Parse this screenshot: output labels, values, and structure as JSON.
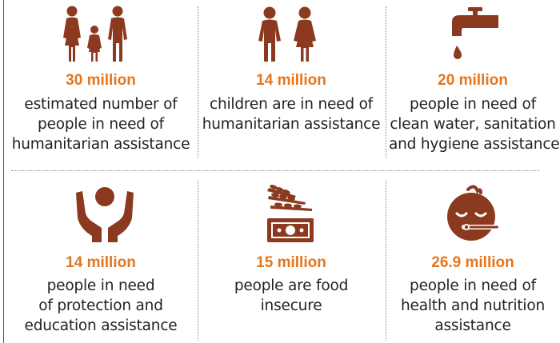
{
  "stats": [
    {
      "icon": "family-icon",
      "figure": "30 million",
      "lines": [
        "estimated number of",
        "people in need of",
        "humanitarian assistance"
      ]
    },
    {
      "icon": "children-icon",
      "figure": "14 million",
      "lines": [
        "children are in need of",
        "humanitarian assistance"
      ]
    },
    {
      "icon": "water-tap-icon",
      "figure": "20 million",
      "lines": [
        "people in need of",
        "clean water, sanitation",
        "and hygiene assistance"
      ]
    },
    {
      "icon": "protection-hands-icon",
      "figure": "14 million",
      "lines": [
        "people in need",
        "of protection and",
        "education assistance"
      ]
    },
    {
      "icon": "food-money-icon",
      "figure": "15 million",
      "lines": [
        "people are food",
        "insecure"
      ]
    },
    {
      "icon": "health-nutrition-icon",
      "figure": "26.9 million",
      "lines": [
        "people in need of",
        "health and nutrition",
        "assistance"
      ]
    }
  ],
  "colors": {
    "icon": "#8b3a1f",
    "figure": "#e4761e",
    "text": "#222222"
  }
}
